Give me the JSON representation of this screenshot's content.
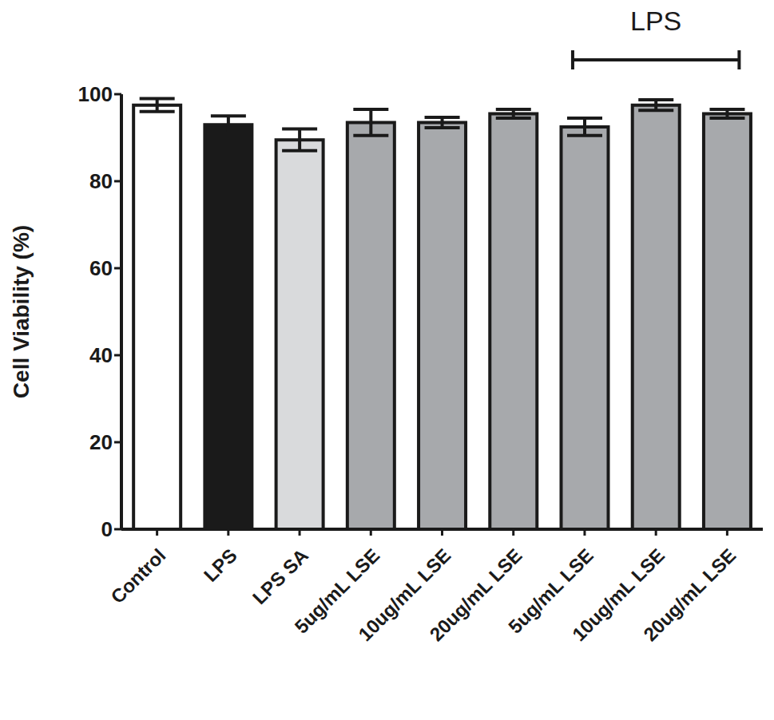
{
  "chart_data": {
    "type": "bar",
    "categories": [
      "Control",
      "LPS",
      "LPS SA",
      "5ug/mL LSE",
      "10ug/mL LSE",
      "20ug/mL LSE",
      "5ug/mL LSE",
      "10ug/mL LSE",
      "20ug/mL LSE"
    ],
    "values": [
      97.5,
      93,
      89.5,
      93.5,
      93.5,
      95.5,
      92.5,
      97.5,
      95.5
    ],
    "errors": [
      1.5,
      2,
      2.5,
      3,
      1.2,
      1,
      2,
      1.2,
      1
    ],
    "colors": [
      "#ffffff",
      "#1a1a1a",
      "#d9dadc",
      "#a7a9ac",
      "#a7a9ac",
      "#a7a9ac",
      "#a7a9ac",
      "#a7a9ac",
      "#a7a9ac"
    ],
    "ylabel": "Cell Viability (%)",
    "ylim": [
      0,
      100
    ],
    "yticks": [
      0,
      20,
      40,
      60,
      80,
      100
    ],
    "annotations": [
      {
        "text": "LPS",
        "span": [
          6,
          8
        ]
      }
    ]
  }
}
